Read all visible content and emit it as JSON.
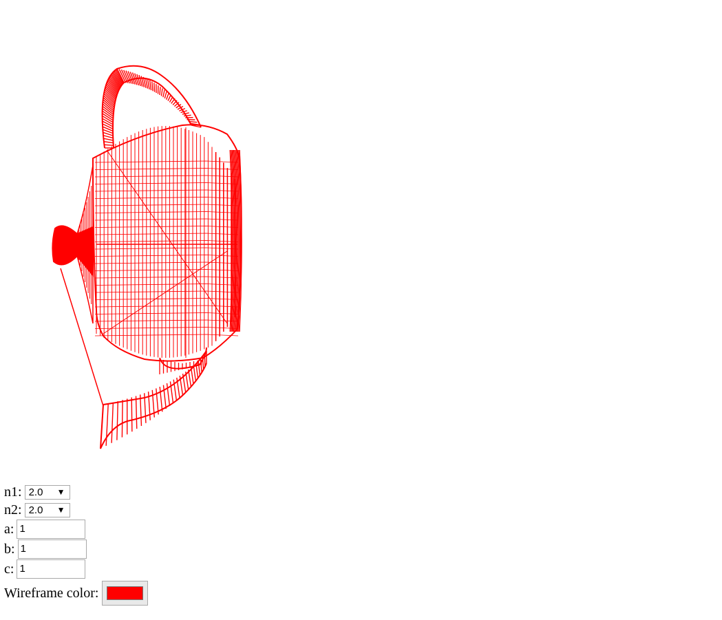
{
  "colors": {
    "wireframe": "#ff0000"
  },
  "controls": {
    "n1": {
      "label": "n1:",
      "value": "2.0",
      "arrow": "▼"
    },
    "n2": {
      "label": "n2:",
      "value": "2.0",
      "arrow": "▼"
    },
    "a": {
      "label": "a:",
      "value": "1"
    },
    "b": {
      "label": "b:",
      "value": "1"
    },
    "c": {
      "label": "c:",
      "value": "1"
    },
    "wireframe_color": {
      "label": "Wireframe color:",
      "value": "#ff0000"
    }
  }
}
